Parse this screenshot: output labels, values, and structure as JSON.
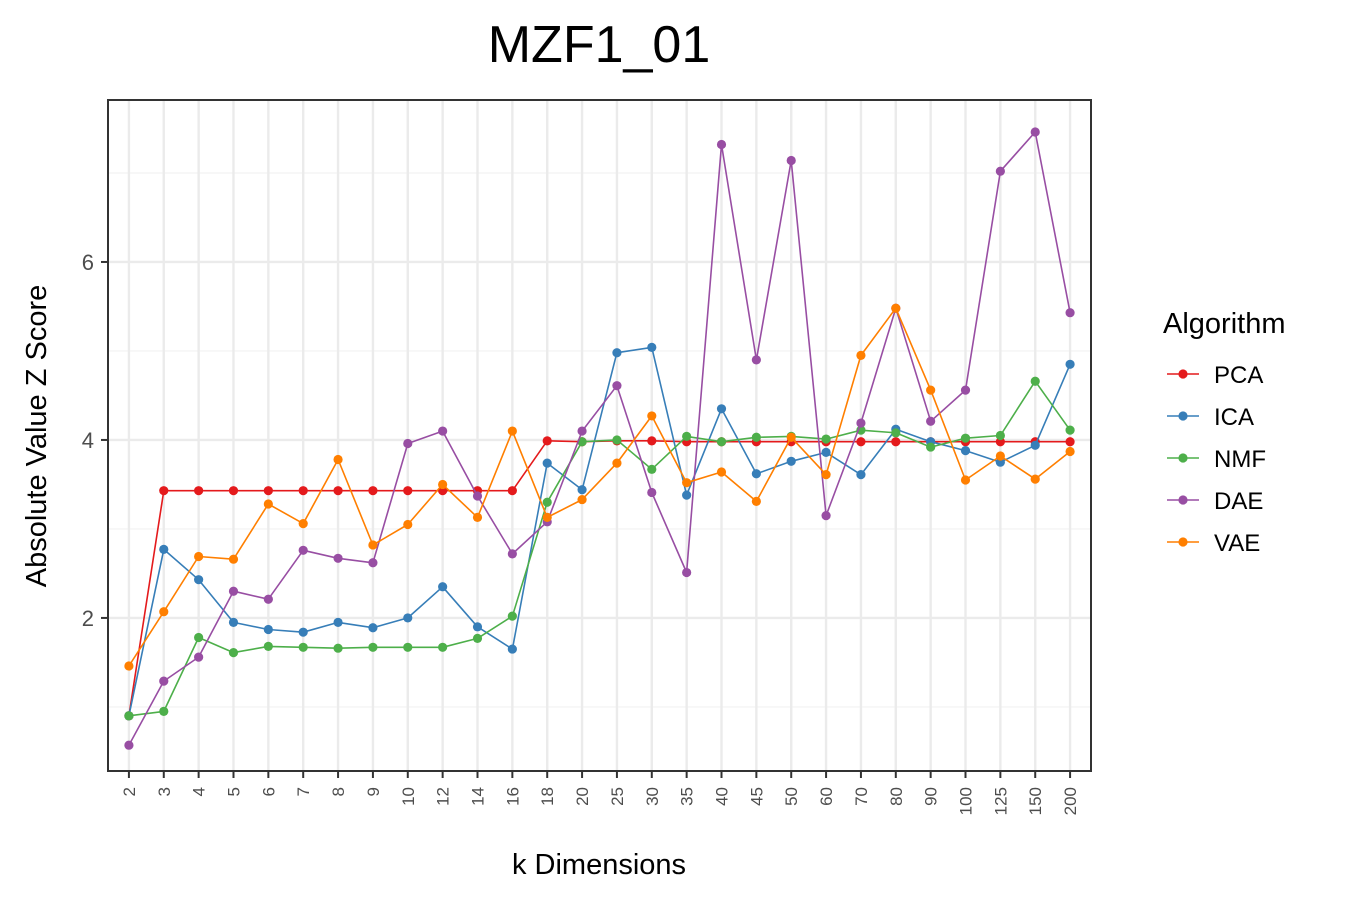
{
  "chart_data": {
    "type": "line",
    "title": "MZF1_01",
    "xlabel": "k Dimensions",
    "ylabel": "Absolute Value Z Score",
    "categories": [
      "2",
      "3",
      "4",
      "5",
      "6",
      "7",
      "8",
      "9",
      "10",
      "12",
      "14",
      "16",
      "18",
      "20",
      "25",
      "30",
      "35",
      "40",
      "45",
      "50",
      "60",
      "70",
      "80",
      "90",
      "100",
      "125",
      "150",
      "200"
    ],
    "y_ticks": [
      2,
      4,
      6
    ],
    "ylim": [
      0.28,
      7.82
    ],
    "grid": true,
    "legend": {
      "title": "Algorithm",
      "position": "right"
    },
    "series": [
      {
        "name": "PCA",
        "color": "#e41a1c",
        "values": [
          0.9,
          3.43,
          3.43,
          3.43,
          3.43,
          3.43,
          3.43,
          3.43,
          3.43,
          3.43,
          3.43,
          3.43,
          3.99,
          3.98,
          3.99,
          3.99,
          3.98,
          3.98,
          3.98,
          3.98,
          3.98,
          3.98,
          3.98,
          3.98,
          3.98,
          3.98,
          3.98,
          3.98
        ]
      },
      {
        "name": "ICA",
        "color": "#377eb8",
        "values": [
          0.9,
          2.77,
          2.43,
          1.95,
          1.87,
          1.84,
          1.95,
          1.89,
          2.0,
          2.35,
          1.9,
          1.65,
          3.74,
          3.44,
          4.98,
          5.04,
          3.38,
          4.35,
          3.62,
          3.76,
          3.86,
          3.61,
          4.12,
          3.98,
          3.88,
          3.75,
          3.94,
          4.85
        ]
      },
      {
        "name": "NMF",
        "color": "#4daf4a",
        "values": [
          0.9,
          0.95,
          1.78,
          1.61,
          1.68,
          1.67,
          1.66,
          1.67,
          1.67,
          1.67,
          1.77,
          2.02,
          3.3,
          3.98,
          4.0,
          3.67,
          4.04,
          3.98,
          4.03,
          4.04,
          4.01,
          4.11,
          4.08,
          3.92,
          4.02,
          4.05,
          4.66,
          4.11
        ]
      },
      {
        "name": "DAE",
        "color": "#984ea3",
        "values": [
          0.57,
          1.29,
          1.56,
          2.3,
          2.21,
          2.76,
          2.67,
          2.62,
          3.96,
          4.1,
          3.37,
          2.72,
          3.08,
          4.1,
          4.61,
          3.41,
          2.51,
          7.32,
          4.9,
          7.14,
          3.15,
          4.19,
          5.48,
          4.21,
          4.56,
          7.02,
          7.46,
          5.43
        ]
      },
      {
        "name": "VAE",
        "color": "#ff7f00",
        "values": [
          1.46,
          2.07,
          2.69,
          2.66,
          3.28,
          3.06,
          3.78,
          2.82,
          3.05,
          3.5,
          3.13,
          4.1,
          3.13,
          3.33,
          3.74,
          4.27,
          3.52,
          3.64,
          3.31,
          4.03,
          3.61,
          4.95,
          5.48,
          4.56,
          3.55,
          3.82,
          3.56,
          3.87
        ]
      }
    ]
  }
}
